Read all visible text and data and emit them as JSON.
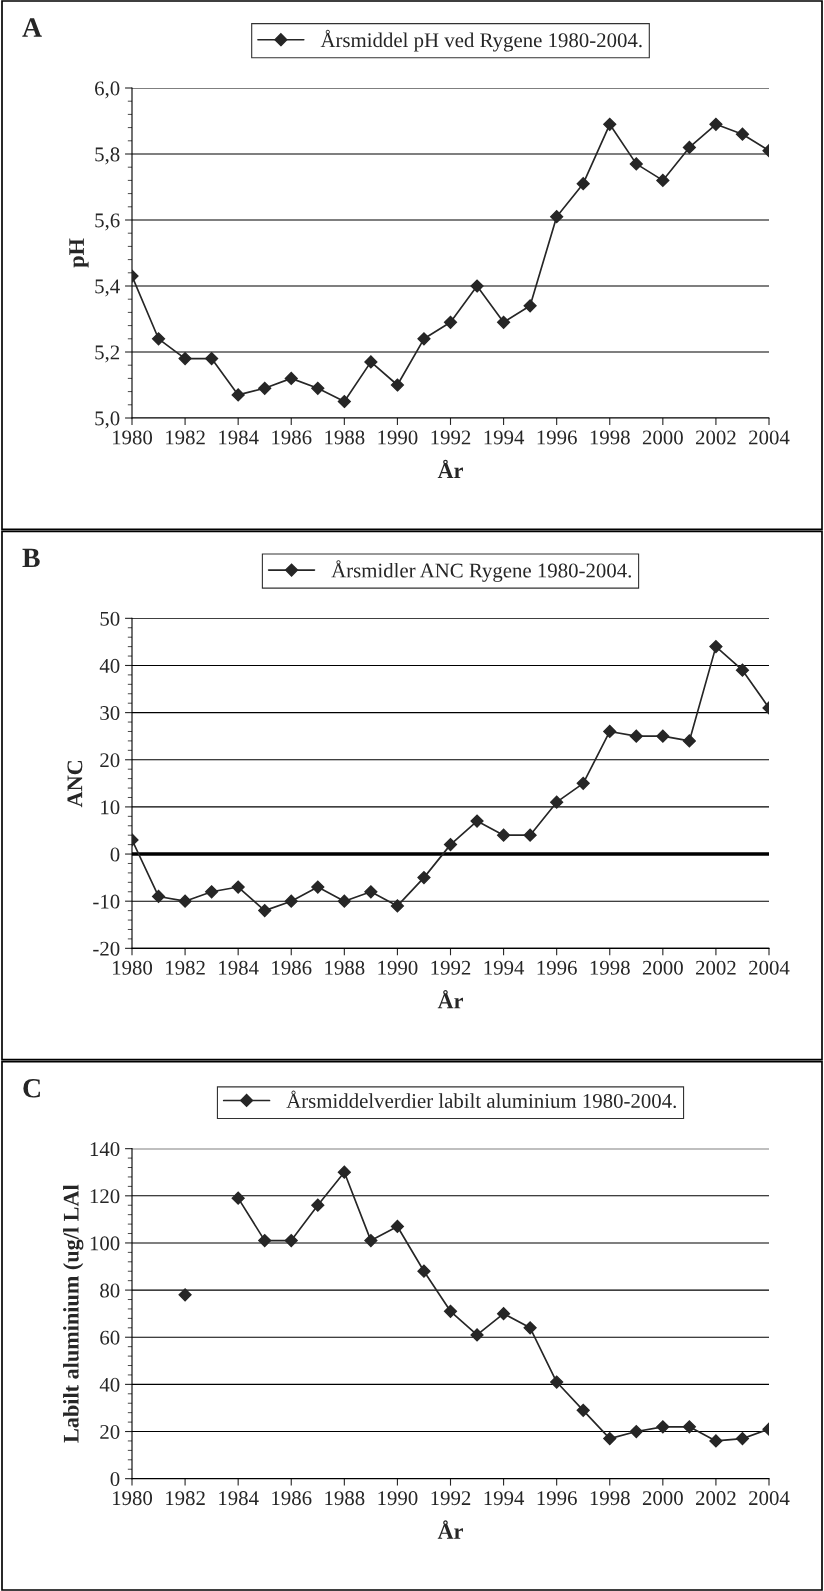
{
  "chart_data": [
    {
      "type": "line",
      "annotations": [
        "A"
      ],
      "xlabel": "År",
      "ylabel": "pH",
      "x": [
        1980,
        1981,
        1982,
        1983,
        1984,
        1985,
        1986,
        1987,
        1988,
        1989,
        1990,
        1991,
        1992,
        1993,
        1994,
        1995,
        1996,
        1997,
        1998,
        1999,
        2000,
        2001,
        2002,
        2003,
        2004
      ],
      "series": [
        {
          "name": "Årsmiddel pH ved Rygene 1980-2004.",
          "color": "#262626",
          "values": [
            5.43,
            5.24,
            5.18,
            5.18,
            5.07,
            5.09,
            5.12,
            5.09,
            5.05,
            5.17,
            5.1,
            5.24,
            5.29,
            5.4,
            5.29,
            5.34,
            5.61,
            5.71,
            5.89,
            5.77,
            5.72,
            5.82,
            5.89,
            5.86,
            5.81
          ]
        }
      ],
      "xlim": [
        1980,
        2004
      ],
      "xticks": [
        1980,
        1982,
        1984,
        1986,
        1988,
        1990,
        1992,
        1994,
        1996,
        1998,
        2000,
        2002,
        2004
      ],
      "ylim": [
        5.0,
        6.0
      ],
      "yticks": [
        {
          "value": 5.0,
          "label": "5,0"
        },
        {
          "value": 5.2,
          "label": "5,2"
        },
        {
          "value": 5.4,
          "label": "5,4"
        },
        {
          "value": 5.6,
          "label": "5,6"
        },
        {
          "value": 5.8,
          "label": "5,8"
        },
        {
          "value": 6.0,
          "label": "6,0"
        }
      ],
      "grid": "y",
      "legend": "top",
      "marker": "diamond",
      "line_style": "solid"
    },
    {
      "type": "line",
      "annotations": [
        "B"
      ],
      "xlabel": "År",
      "ylabel": "ANC",
      "x": [
        1980,
        1981,
        1982,
        1983,
        1984,
        1985,
        1986,
        1987,
        1988,
        1989,
        1990,
        1991,
        1992,
        1993,
        1994,
        1995,
        1996,
        1997,
        1998,
        1999,
        2000,
        2001,
        2002,
        2003,
        2004
      ],
      "series": [
        {
          "name": "Årsmidler ANC Rygene 1980-2004.",
          "color": "#262626",
          "values": [
            3,
            -9,
            -10,
            -8,
            -7,
            -12,
            -10,
            -7,
            -10,
            -8,
            -11,
            -5,
            2,
            7,
            4,
            4,
            11,
            15,
            26,
            25,
            25,
            24,
            44,
            39,
            31
          ]
        }
      ],
      "xlim": [
        1980,
        2004
      ],
      "xticks": [
        1980,
        1982,
        1984,
        1986,
        1988,
        1990,
        1992,
        1994,
        1996,
        1998,
        2000,
        2002,
        2004
      ],
      "ylim": [
        -20,
        50
      ],
      "yticks": [
        -20,
        -10,
        0,
        10,
        20,
        30,
        40,
        50
      ],
      "ref_lines": [
        {
          "axis": "y",
          "value": 0,
          "color": "#000000"
        }
      ],
      "grid": "y",
      "legend": "top",
      "marker": "diamond",
      "line_style": "solid"
    },
    {
      "type": "line",
      "annotations": [
        "C"
      ],
      "xlabel": "År",
      "ylabel": "Labilt aluminium (ug/l LAl",
      "series": [
        {
          "name": "Årsmiddelverdier labilt aluminium 1980-2004.",
          "color": "#262626",
          "x": [
            1982,
            1983,
            1984,
            1985,
            1986,
            1987,
            1988,
            1989,
            1990,
            1991,
            1992,
            1993,
            1994,
            1995,
            1996,
            1997,
            1998,
            1999,
            2000,
            2001,
            2002,
            2003,
            2004
          ],
          "values": [
            78,
            null,
            119,
            101,
            101,
            116,
            130,
            101,
            107,
            88,
            71,
            61,
            70,
            64,
            41,
            29,
            17,
            20,
            22,
            22,
            16,
            17,
            21
          ]
        }
      ],
      "xlim": [
        1980,
        2004
      ],
      "xticks": [
        1980,
        1982,
        1984,
        1986,
        1988,
        1990,
        1992,
        1994,
        1996,
        1998,
        2000,
        2002,
        2004
      ],
      "ylim": [
        0,
        140
      ],
      "yticks": [
        0,
        20,
        40,
        60,
        80,
        100,
        120,
        140
      ],
      "grid": "y",
      "legend": "top",
      "marker": "diamond",
      "line_style": "solid"
    }
  ]
}
